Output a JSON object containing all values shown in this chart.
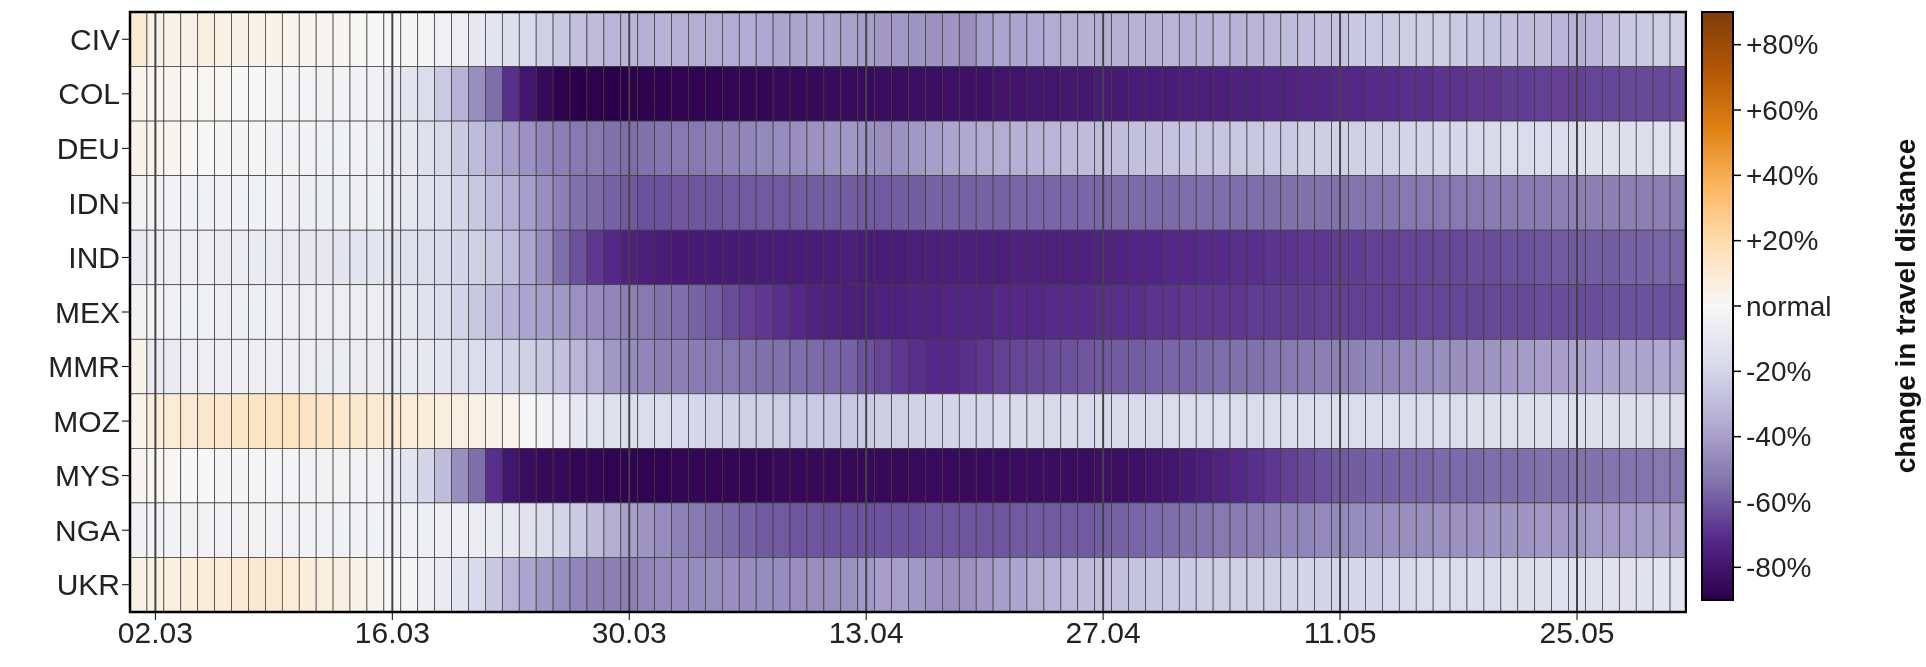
{
  "chart_data": {
    "type": "heatmap",
    "categories": [
      null,
      "02.03",
      null,
      null,
      null,
      null,
      null,
      null,
      null,
      null,
      null,
      null,
      null,
      null,
      null,
      "16.03",
      null,
      null,
      null,
      null,
      null,
      null,
      null,
      null,
      null,
      null,
      null,
      null,
      null,
      "30.03",
      null,
      null,
      null,
      null,
      null,
      null,
      null,
      null,
      null,
      null,
      null,
      null,
      null,
      "13.04",
      null,
      null,
      null,
      null,
      null,
      null,
      null,
      null,
      null,
      null,
      null,
      null,
      null,
      "27.04",
      null,
      null,
      null,
      null,
      null,
      null,
      null,
      null,
      null,
      null,
      null,
      null,
      null,
      "11.05",
      null,
      null,
      null,
      null,
      null,
      null,
      null,
      null,
      null,
      null,
      null,
      null,
      null,
      "25.05",
      null,
      null,
      null,
      null,
      null,
      null
    ],
    "y_categories": [
      "CIV",
      "COL",
      "DEU",
      "IDN",
      "IND",
      "MEX",
      "MMR",
      "MOZ",
      "MYS",
      "NGA",
      "UKR"
    ],
    "cells": [
      [
        10,
        5,
        4,
        5,
        6,
        5,
        4,
        4,
        4,
        3,
        3,
        2,
        2,
        1,
        0,
        0,
        -1,
        -2,
        -4,
        -6,
        -10,
        -12,
        -15,
        -18,
        -22,
        -25,
        -28,
        -30,
        -32,
        -32,
        -34,
        -33,
        -34,
        -35,
        -35,
        -36,
        -36,
        -37,
        -38,
        -38,
        -37,
        -38,
        -39,
        -40,
        -42,
        -42,
        -43,
        -44,
        -43,
        -45,
        -40,
        -38,
        -38,
        -37,
        -36,
        -35,
        -34,
        -35,
        -34,
        -33,
        -33,
        -32,
        -34,
        -33,
        -32,
        -33,
        -32,
        -31,
        -30,
        -29,
        -28,
        -27,
        -25,
        -24,
        -24,
        -23,
        -23,
        -23,
        -24,
        -25,
        -27,
        -28,
        -30,
        -30,
        -32,
        -34,
        -32,
        -28,
        -25,
        -24,
        -23,
        -22
      ],
      [
        3,
        2,
        2,
        1,
        1,
        1,
        0,
        0,
        -1,
        -2,
        -2,
        -3,
        -3,
        -4,
        -4,
        -8,
        -12,
        -16,
        -24,
        -33,
        -45,
        -55,
        -70,
        -80,
        -86,
        -89,
        -90,
        -89,
        -90,
        -90,
        -89,
        -89,
        -88,
        -88,
        -88,
        -87,
        -87,
        -87,
        -86,
        -86,
        -86,
        -85,
        -85,
        -85,
        -84,
        -84,
        -83,
        -83,
        -82,
        -82,
        -82,
        -81,
        -81,
        -80,
        -80,
        -79,
        -79,
        -78,
        -78,
        -77,
        -77,
        -77,
        -76,
        -76,
        -76,
        -75,
        -75,
        -74,
        -74,
        -73,
        -73,
        -72,
        -72,
        -71,
        -71,
        -70,
        -70,
        -69,
        -69,
        -68,
        -68,
        -67,
        -67,
        -66,
        -66,
        -66,
        -65,
        -65,
        -64,
        -64,
        -64,
        -63
      ],
      [
        4,
        3,
        2,
        1,
        0,
        -1,
        -2,
        -2,
        -3,
        -3,
        -3,
        -4,
        -4,
        -4,
        -5,
        -8,
        -10,
        -14,
        -18,
        -24,
        -30,
        -36,
        -40,
        -44,
        -48,
        -50,
        -52,
        -52,
        -54,
        -55,
        -54,
        -53,
        -52,
        -52,
        -50,
        -49,
        -48,
        -47,
        -46,
        -45,
        -44,
        -43,
        -42,
        -44,
        -45,
        -44,
        -42,
        -40,
        -38,
        -37,
        -36,
        -35,
        -34,
        -33,
        -32,
        -31,
        -30,
        -30,
        -29,
        -28,
        -28,
        -27,
        -27,
        -26,
        -26,
        -25,
        -25,
        -24,
        -24,
        -23,
        -23,
        -22,
        -22,
        -21,
        -21,
        -20,
        -20,
        -19,
        -19,
        -18,
        -18,
        -17,
        -17,
        -16,
        -16,
        -16,
        -15,
        -15,
        -15,
        -15,
        -14,
        -14
      ],
      [
        -3,
        -3,
        -3,
        -4,
        -4,
        -4,
        -4,
        -4,
        -4,
        -5,
        -5,
        -5,
        -5,
        -5,
        -5,
        -8,
        -10,
        -13,
        -16,
        -20,
        -25,
        -30,
        -35,
        -40,
        -45,
        -50,
        -54,
        -56,
        -58,
        -60,
        -62,
        -62,
        -61,
        -61,
        -61,
        -60,
        -60,
        -60,
        -60,
        -59,
        -59,
        -59,
        -59,
        -60,
        -60,
        -59,
        -59,
        -58,
        -58,
        -58,
        -58,
        -58,
        -57,
        -57,
        -57,
        -57,
        -57,
        -57,
        -56,
        -56,
        -56,
        -56,
        -55,
        -55,
        -55,
        -55,
        -55,
        -55,
        -54,
        -54,
        -54,
        -54,
        -53,
        -53,
        -53,
        -52,
        -52,
        -52,
        -52,
        -52,
        -51,
        -51,
        -51,
        -51,
        -50,
        -50,
        -50,
        -50,
        -50,
        -50,
        -50,
        -50
      ],
      [
        -8,
        -5,
        -5,
        -6,
        -6,
        -7,
        -7,
        -8,
        -8,
        -9,
        -10,
        -10,
        -11,
        -12,
        -12,
        -13,
        -14,
        -16,
        -18,
        -20,
        -22,
        -25,
        -30,
        -38,
        -45,
        -55,
        -62,
        -68,
        -72,
        -75,
        -76,
        -77,
        -78,
        -78,
        -78,
        -78,
        -78,
        -77,
        -77,
        -77,
        -77,
        -77,
        -76,
        -77,
        -77,
        -77,
        -76,
        -76,
        -76,
        -76,
        -76,
        -76,
        -75,
        -75,
        -75,
        -75,
        -75,
        -74,
        -74,
        -73,
        -73,
        -72,
        -72,
        -71,
        -71,
        -70,
        -70,
        -69,
        -69,
        -68,
        -68,
        -67,
        -67,
        -66,
        -66,
        -65,
        -65,
        -64,
        -64,
        -63,
        -63,
        -62,
        -62,
        -61,
        -60,
        -60,
        -59,
        -59,
        -58,
        -58,
        -57,
        -57
      ],
      [
        -3,
        -3,
        -4,
        -4,
        -4,
        -5,
        -5,
        -5,
        -5,
        -6,
        -6,
        -6,
        -6,
        -6,
        -6,
        -8,
        -10,
        -13,
        -16,
        -20,
        -25,
        -30,
        -34,
        -38,
        -40,
        -42,
        -44,
        -46,
        -48,
        -50,
        -52,
        -54,
        -55,
        -58,
        -60,
        -63,
        -66,
        -68,
        -70,
        -72,
        -74,
        -75,
        -76,
        -76,
        -75,
        -75,
        -74,
        -74,
        -73,
        -73,
        -73,
        -72,
        -72,
        -72,
        -71,
        -71,
        -71,
        -70,
        -70,
        -70,
        -69,
        -69,
        -68,
        -68,
        -68,
        -68,
        -67,
        -67,
        -67,
        -67,
        -66,
        -66,
        -66,
        -66,
        -66,
        -66,
        -65,
        -65,
        -65,
        -65,
        -64,
        -64,
        -64,
        -63,
        -63,
        -63,
        -63,
        -62,
        -62,
        -62,
        -62,
        -62
      ],
      [
        4,
        -8,
        -8,
        -6,
        -6,
        -6,
        -6,
        -6,
        -6,
        -6,
        -6,
        -7,
        -7,
        -7,
        -7,
        -8,
        -9,
        -10,
        -12,
        -14,
        -16,
        -18,
        -20,
        -22,
        -25,
        -28,
        -32,
        -36,
        -42,
        -46,
        -48,
        -50,
        -50,
        -51,
        -52,
        -52,
        -53,
        -54,
        -54,
        -55,
        -56,
        -57,
        -58,
        -62,
        -65,
        -68,
        -70,
        -72,
        -72,
        -70,
        -68,
        -66,
        -65,
        -64,
        -63,
        -62,
        -61,
        -60,
        -60,
        -59,
        -58,
        -57,
        -57,
        -56,
        -55,
        -54,
        -54,
        -53,
        -52,
        -51,
        -50,
        -50,
        -49,
        -48,
        -48,
        -47,
        -46,
        -45,
        -45,
        -44,
        -43,
        -42,
        -41,
        -40,
        -40,
        -39,
        -39,
        -38,
        -38,
        -38,
        -37,
        -37
      ],
      [
        3,
        8,
        9,
        10,
        11,
        12,
        13,
        14,
        15,
        15,
        14,
        13,
        12,
        11,
        10,
        10,
        9,
        8,
        7,
        6,
        5,
        4,
        3,
        0,
        -3,
        -6,
        -10,
        -12,
        -14,
        -15,
        -16,
        -17,
        -18,
        -19,
        -20,
        -21,
        -22,
        -22,
        -23,
        -24,
        -24,
        -25,
        -25,
        -24,
        -23,
        -22,
        -21,
        -20,
        -20,
        -19,
        -19,
        -18,
        -18,
        -18,
        -18,
        -18,
        -18,
        -18,
        -18,
        -18,
        -18,
        -17,
        -17,
        -17,
        -17,
        -17,
        -17,
        -17,
        -16,
        -16,
        -16,
        -16,
        -16,
        -16,
        -16,
        -16,
        -16,
        -16,
        -16,
        -15,
        -15,
        -15,
        -15,
        -15,
        -15,
        -15,
        -15,
        -15,
        -15,
        -15,
        -15,
        -15
      ],
      [
        2,
        1,
        1,
        0,
        0,
        -1,
        -1,
        -2,
        -2,
        -2,
        -3,
        -3,
        -3,
        -3,
        -3,
        -8,
        -12,
        -20,
        -30,
        -45,
        -55,
        -70,
        -80,
        -84,
        -86,
        -86,
        -87,
        -87,
        -88,
        -88,
        -88,
        -88,
        -87,
        -87,
        -87,
        -87,
        -87,
        -87,
        -86,
        -86,
        -86,
        -86,
        -86,
        -86,
        -86,
        -86,
        -85,
        -85,
        -85,
        -85,
        -85,
        -85,
        -84,
        -84,
        -84,
        -84,
        -84,
        -83,
        -83,
        -82,
        -81,
        -80,
        -78,
        -76,
        -74,
        -72,
        -70,
        -68,
        -66,
        -64,
        -62,
        -60,
        -59,
        -58,
        -58,
        -57,
        -57,
        -56,
        -56,
        -56,
        -55,
        -55,
        -55,
        -54,
        -54,
        -54,
        -54,
        -53,
        -53,
        -53,
        -52,
        -52
      ],
      [
        -4,
        -3,
        -3,
        -3,
        -3,
        -3,
        -3,
        -3,
        -3,
        -3,
        -3,
        -3,
        -4,
        -4,
        -4,
        -4,
        -4,
        -5,
        -5,
        -6,
        -7,
        -8,
        -10,
        -13,
        -16,
        -20,
        -24,
        -30,
        -35,
        -40,
        -43,
        -46,
        -49,
        -52,
        -54,
        -56,
        -58,
        -60,
        -60,
        -61,
        -61,
        -62,
        -62,
        -62,
        -62,
        -62,
        -62,
        -61,
        -61,
        -61,
        -61,
        -61,
        -60,
        -60,
        -60,
        -60,
        -60,
        -59,
        -58,
        -57,
        -56,
        -55,
        -54,
        -53,
        -52,
        -51,
        -50,
        -49,
        -48,
        -48,
        -47,
        -47,
        -46,
        -46,
        -45,
        -45,
        -45,
        -44,
        -44,
        -44,
        -43,
        -43,
        -43,
        -42,
        -42,
        -42,
        -41,
        -41,
        -41,
        -40,
        -40,
        -40
      ],
      [
        5,
        6,
        7,
        8,
        8,
        9,
        10,
        11,
        10,
        9,
        8,
        7,
        6,
        4,
        3,
        0,
        -2,
        -5,
        -8,
        -12,
        -18,
        -25,
        -32,
        -38,
        -42,
        -45,
        -48,
        -50,
        -50,
        -50,
        -48,
        -47,
        -46,
        -46,
        -45,
        -45,
        -46,
        -46,
        -46,
        -45,
        -45,
        -45,
        -44,
        -42,
        -40,
        -40,
        -42,
        -44,
        -45,
        -44,
        -42,
        -40,
        -38,
        -35,
        -33,
        -31,
        -30,
        -29,
        -28,
        -27,
        -26,
        -25,
        -24,
        -23,
        -23,
        -22,
        -22,
        -21,
        -21,
        -20,
        -20,
        -20,
        -19,
        -19,
        -18,
        -18,
        -17,
        -17,
        -17,
        -16,
        -16,
        -15,
        -15,
        -15,
        -14,
        -14,
        -14,
        -13,
        -13,
        -13,
        -12,
        -12
      ]
    ],
    "clim": [
      -90,
      90
    ],
    "cticks": [
      {
        "value": -80,
        "label": "-80%"
      },
      {
        "value": -60,
        "label": "-60%"
      },
      {
        "value": -40,
        "label": "-40%"
      },
      {
        "value": -20,
        "label": "-20%"
      },
      {
        "value": 0,
        "label": "normal"
      },
      {
        "value": 20,
        "label": "+20%"
      },
      {
        "value": 40,
        "label": "+40%"
      },
      {
        "value": 60,
        "label": "+60%"
      },
      {
        "value": 80,
        "label": "+80%"
      }
    ],
    "clabel": "change in travel distance",
    "grid": "x"
  }
}
